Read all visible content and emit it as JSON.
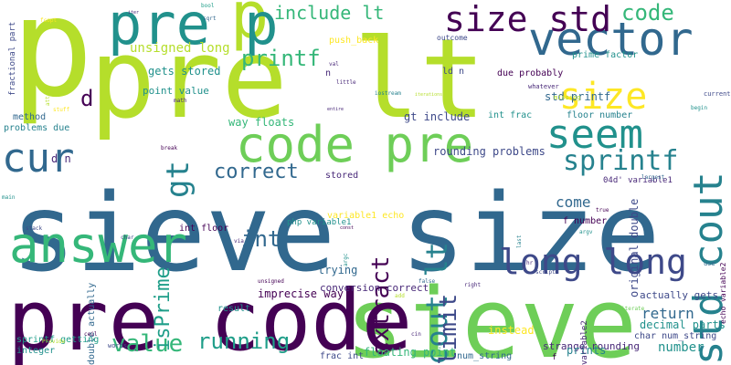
{
  "words": [
    {
      "text": "sieve size",
      "color": "#31688e"
    },
    {
      "text": "sieve",
      "color": "#6ece58"
    },
    {
      "text": "p",
      "color": "#b5de2b"
    },
    {
      "text": "pre lt",
      "color": "#b5de2b"
    },
    {
      "text": "pre code",
      "color": "#440154"
    },
    {
      "text": "p",
      "color": "#b5de2b"
    },
    {
      "text": "pre p",
      "color": "#21918c"
    },
    {
      "text": "code pre",
      "color": "#6ece58"
    },
    {
      "text": "vector",
      "color": "#31688e"
    },
    {
      "text": "answer",
      "color": "#35b779"
    },
    {
      "text": "size std",
      "color": "#440154"
    },
    {
      "text": "size",
      "color": "#fde725"
    },
    {
      "text": "seem",
      "color": "#21918c"
    },
    {
      "text": "long long",
      "color": "#3e4989"
    },
    {
      "text": "cur",
      "color": "#31688e"
    },
    {
      "text": "std cout",
      "color": "#26828e"
    },
    {
      "text": "gt",
      "color": "#26828e"
    },
    {
      "text": "cout lt",
      "color": "#26828e"
    },
    {
      "text": "sprintf",
      "color": "#26828e"
    },
    {
      "text": "extract",
      "color": "#440154"
    },
    {
      "text": "limit",
      "color": "#3e4989"
    },
    {
      "text": "running",
      "color": "#1f9e89"
    },
    {
      "text": "value",
      "color": "#35b779"
    },
    {
      "text": "printf",
      "color": "#35b779"
    },
    {
      "text": "include lt",
      "color": "#35b779"
    },
    {
      "text": "code",
      "color": "#35b779"
    },
    {
      "text": "correct",
      "color": "#31688e"
    },
    {
      "text": "isPrime",
      "color": "#1f9e89"
    },
    {
      "text": "int",
      "color": "#31688e"
    },
    {
      "text": "d",
      "color": "#440154"
    },
    {
      "text": "unsigned long",
      "color": "#b5de2b"
    },
    {
      "text": "gets stored",
      "color": "#21918c"
    },
    {
      "text": "point value",
      "color": "#21918c"
    },
    {
      "text": "way floats",
      "color": "#35b779"
    },
    {
      "text": "gt include",
      "color": "#3e4989"
    },
    {
      "text": "int frac",
      "color": "#21918c"
    },
    {
      "text": "floor number",
      "color": "#26828e"
    },
    {
      "text": "std printf",
      "color": "#31688e"
    },
    {
      "text": "due probably",
      "color": "#440154"
    },
    {
      "text": "ld n",
      "color": "#3e4989"
    },
    {
      "text": "push_back",
      "color": "#fde725"
    },
    {
      "text": "outcome",
      "color": "#3e4989"
    },
    {
      "text": "prime factor",
      "color": "#21918c"
    },
    {
      "text": "original double",
      "color": "#3e4989"
    },
    {
      "text": "stored",
      "color": "#482878"
    },
    {
      "text": "rounding problems",
      "color": "#3e4989"
    },
    {
      "text": "variable1 echo",
      "color": "#fde725"
    },
    {
      "text": "f number",
      "color": "#440154"
    },
    {
      "text": "04d' variable1",
      "color": "#482878"
    },
    {
      "text": "come",
      "color": "#31688e"
    },
    {
      "text": "return",
      "color": "#31688e"
    },
    {
      "text": "actually gets",
      "color": "#3e4989"
    },
    {
      "text": "decimal parts",
      "color": "#21918c"
    },
    {
      "text": "char num_string",
      "color": "#3e4989"
    },
    {
      "text": "strange rounding",
      "color": "#482878"
    },
    {
      "text": "number",
      "color": "#21918c"
    },
    {
      "text": "prints",
      "color": "#26828e"
    },
    {
      "text": "num_string",
      "color": "#31688e"
    },
    {
      "text": "floating point",
      "color": "#35b779"
    },
    {
      "text": "frac int",
      "color": "#3e4989"
    },
    {
      "text": "instead",
      "color": "#fde725"
    },
    {
      "text": "conversion correct",
      "color": "#482878"
    },
    {
      "text": "trying",
      "color": "#31688e"
    },
    {
      "text": "imprecise way",
      "color": "#440154"
    },
    {
      "text": "result",
      "color": "#21918c"
    },
    {
      "text": "int floor",
      "color": "#440154"
    },
    {
      "text": "double actually",
      "color": "#31688e"
    },
    {
      "text": "d n",
      "color": "#482878"
    },
    {
      "text": "method",
      "color": "#31688e"
    },
    {
      "text": "problems due",
      "color": "#26828e"
    },
    {
      "text": "fractional part",
      "color": "#3e4989"
    },
    {
      "text": "sprintf getting",
      "color": "#1f9e89"
    },
    {
      "text": "integer",
      "color": "#21918c"
    },
    {
      "text": "words",
      "color": "#3e4989"
    },
    {
      "text": "echo variable2",
      "color": "#440154"
    },
    {
      "text": "variable2",
      "color": "#482878"
    },
    {
      "text": "php variable1",
      "color": "#21918c"
    },
    {
      "text": "whatever",
      "color": "#482878"
    },
    {
      "text": "missing",
      "color": "#b5de2b"
    },
    {
      "text": "iostream",
      "color": "#26828e"
    },
    {
      "text": "iterations",
      "color": "#b5de2b"
    },
    {
      "text": "entire",
      "color": "#482878"
    },
    {
      "text": "little",
      "color": "#482878"
    },
    {
      "text": "val",
      "color": "#482878"
    },
    {
      "text": "math",
      "color": "#482878"
    },
    {
      "text": "n",
      "color": "#482878"
    },
    {
      "text": "sqrt",
      "color": "#31688e"
    },
    {
      "text": "bool",
      "color": "#1f9e89"
    },
    {
      "text": "iter",
      "color": "#482878"
    },
    {
      "text": "fcopt",
      "color": "#fde725"
    },
    {
      "text": "stuff",
      "color": "#fde725"
    },
    {
      "text": "attr",
      "color": "#b5de2b"
    },
    {
      "text": "true",
      "color": "#440154"
    },
    {
      "text": "largest",
      "color": "#31688e"
    },
    {
      "text": "current",
      "color": "#3e4989"
    },
    {
      "text": "begin",
      "color": "#21918c"
    },
    {
      "text": "main",
      "color": "#21918c"
    },
    {
      "text": "stack",
      "color": "#3e4989"
    },
    {
      "text": "char",
      "color": "#3e4989"
    },
    {
      "text": "via",
      "color": "#482878"
    },
    {
      "text": "break",
      "color": "#440154"
    },
    {
      "text": "const",
      "color": "#440154"
    },
    {
      "text": "argc",
      "color": "#21918c"
    },
    {
      "text": "argv",
      "color": "#21918c"
    },
    {
      "text": "last",
      "color": "#26828e"
    },
    {
      "text": "hr",
      "color": "#482878"
    },
    {
      "text": "script",
      "color": "#3e4989"
    },
    {
      "text": "right",
      "color": "#482878"
    },
    {
      "text": "false",
      "color": "#31688e"
    },
    {
      "text": "add",
      "color": "#b5de2b"
    },
    {
      "text": "cin",
      "color": "#482878"
    },
    {
      "text": "ceil",
      "color": "#440154"
    },
    {
      "text": "unsigned",
      "color": "#440154"
    },
    {
      "text": "Provide",
      "color": "#b5de2b"
    },
    {
      "text": "iterate",
      "color": "#6ece58"
    },
    {
      "text": "use",
      "color": "#31688e"
    },
    {
      "text": "f",
      "color": "#440154"
    }
  ]
}
